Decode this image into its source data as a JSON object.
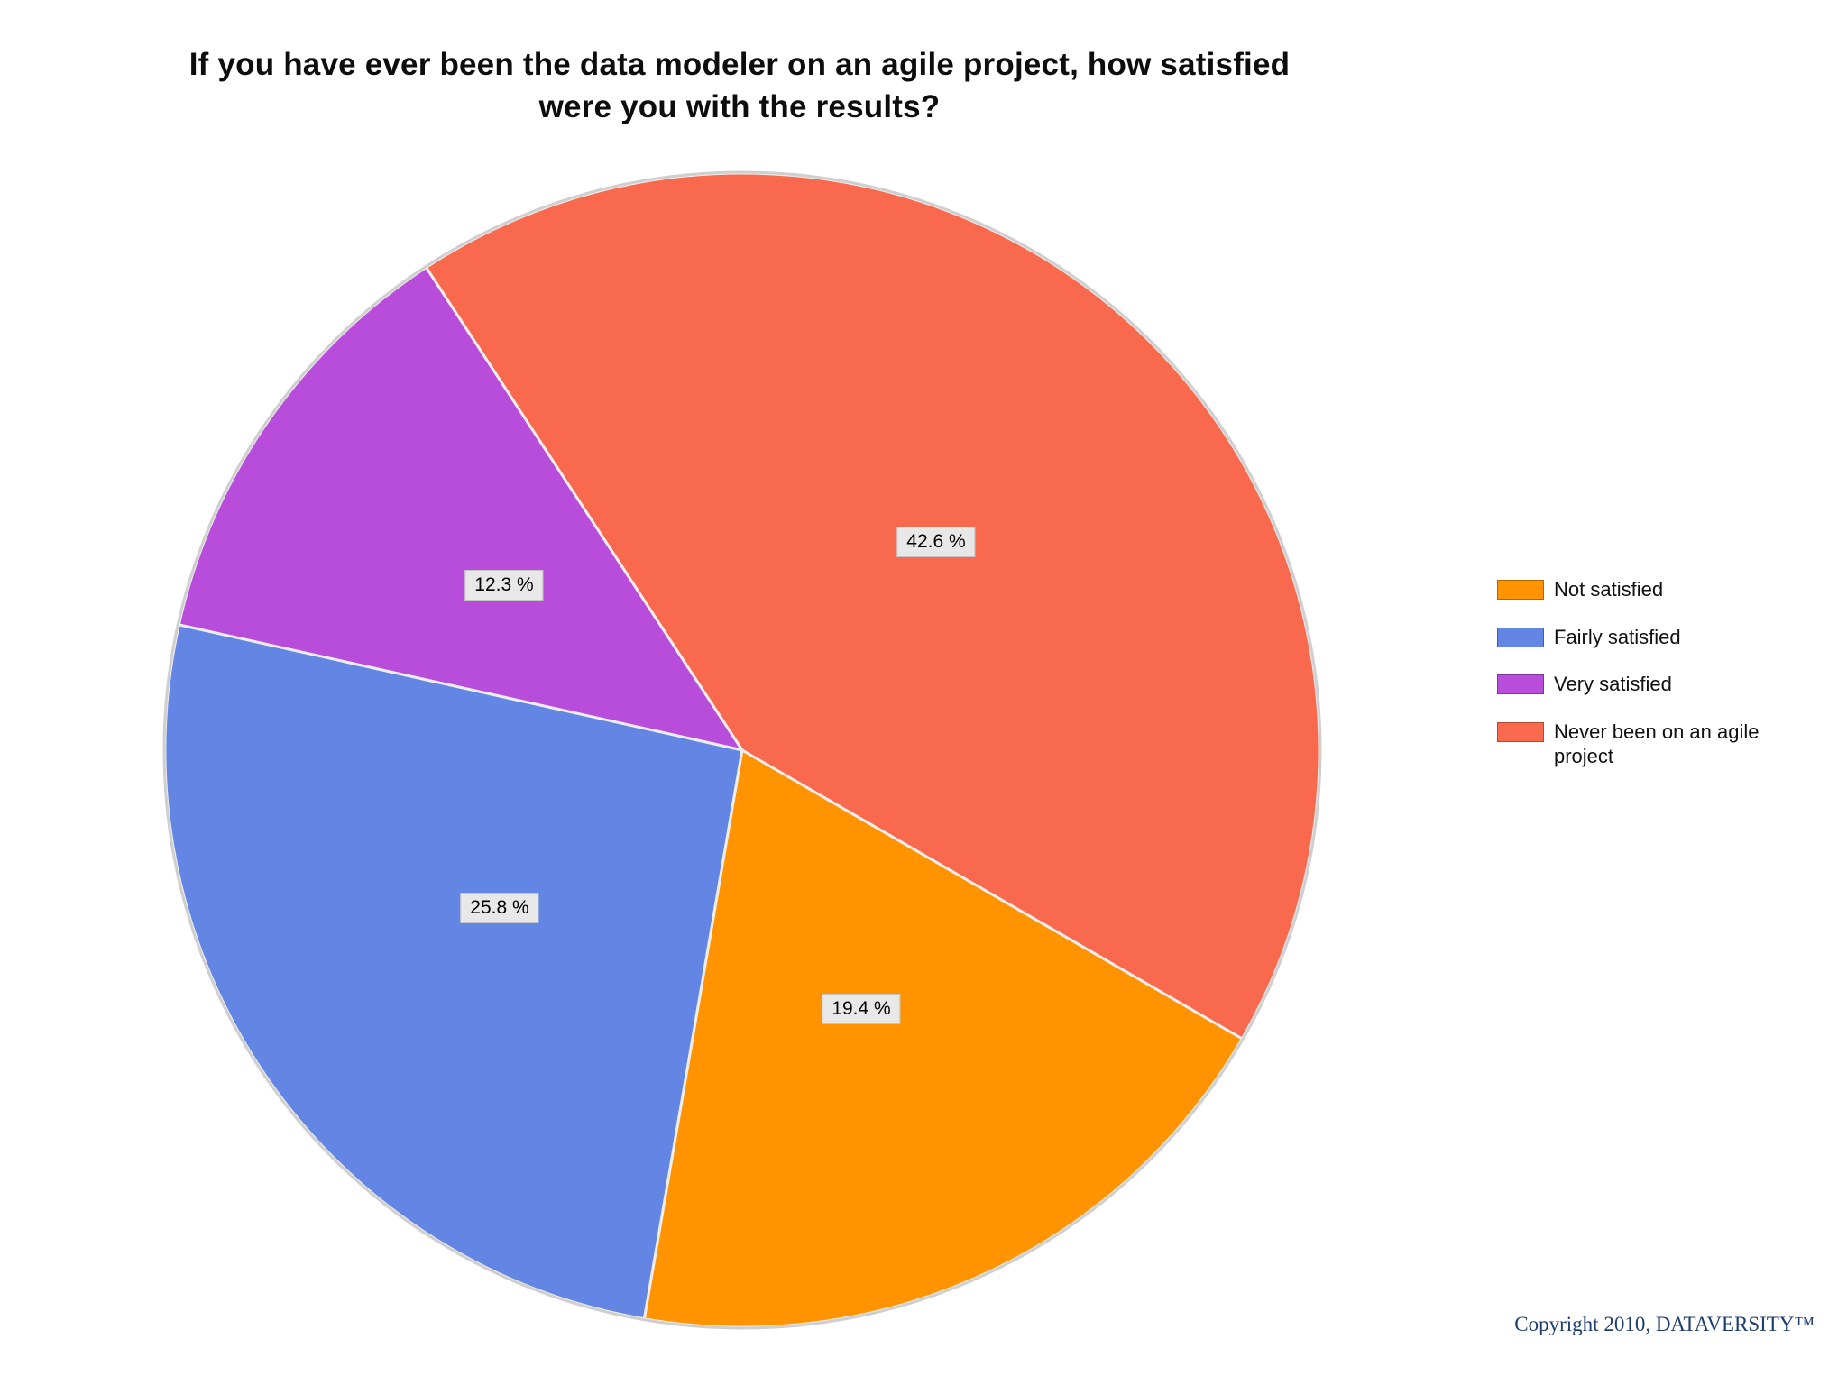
{
  "chart_data": {
    "type": "pie",
    "title": "If you have ever been the data modeler on an agile project, how satisfied were you with the results?",
    "slices": [
      {
        "label": "Not satisfied",
        "value": 19.4,
        "display": "19.4 %",
        "color": "#ff9400"
      },
      {
        "label": "Fairly satisfied",
        "value": 25.8,
        "display": "25.8 %",
        "color": "#6385e4"
      },
      {
        "label": "Very satisfied",
        "value": 12.3,
        "display": "12.3 %",
        "color": "#b94ddb"
      },
      {
        "label": "Never been on an agile project",
        "value": 42.6,
        "display": "42.6 %",
        "color": "#f9694d"
      }
    ],
    "rotation_deg": -30,
    "draw_order": [
      3,
      2,
      1,
      0
    ],
    "legend_position": "right",
    "label_bg": "#e8e8e8",
    "label_text_color": "#000000",
    "separator_color": "#ededed",
    "rim_color": "#cfcfcf"
  },
  "footer": {
    "copyright": "Copyright 2010, DATAVERSITY™"
  }
}
